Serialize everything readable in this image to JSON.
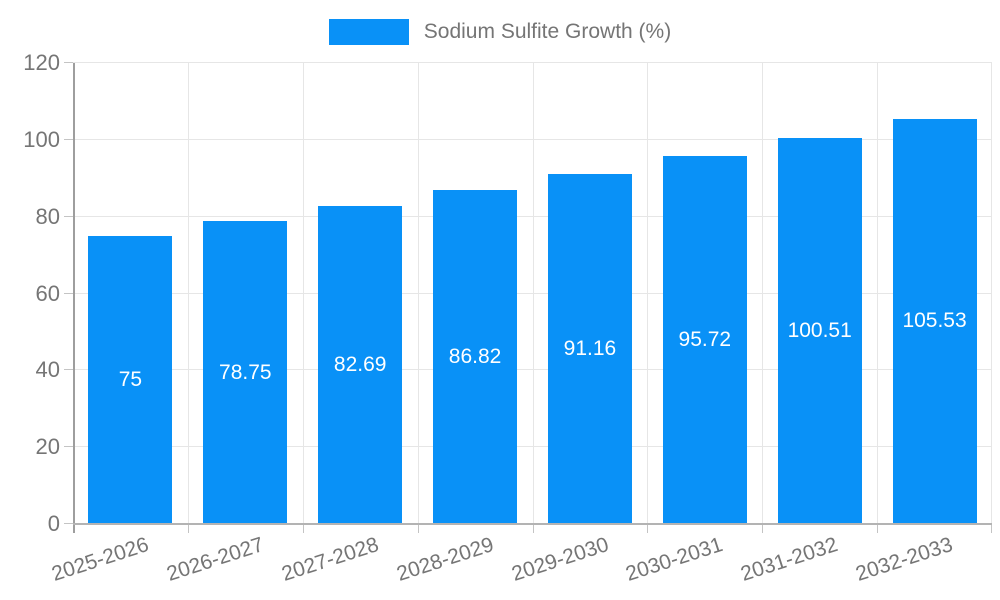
{
  "legend": {
    "label": "Sodium Sulfite Growth (%)"
  },
  "chart_data": {
    "type": "bar",
    "title": "",
    "categories": [
      "2025-2026",
      "2026-2027",
      "2027-2028",
      "2028-2029",
      "2029-2030",
      "2030-2031",
      "2031-2032",
      "2032-2033"
    ],
    "series": [
      {
        "name": "Sodium Sulfite Growth (%)",
        "values": [
          75,
          78.75,
          82.69,
          86.82,
          91.16,
          95.72,
          100.51,
          105.53
        ],
        "value_labels": [
          "75",
          "78.75",
          "82.69",
          "86.82",
          "91.16",
          "95.72",
          "100.51",
          "105.53"
        ],
        "color": "#0991f7"
      }
    ],
    "xlabel": "",
    "ylabel": "",
    "ylim": [
      0,
      120
    ],
    "yticks": [
      0,
      20,
      40,
      60,
      80,
      100,
      120
    ],
    "grid": true,
    "legend_position": "top",
    "x_label_rotation_deg": -18,
    "colors": {
      "bar": "#0991f7",
      "bar_value_text": "#ffffff",
      "axis_text": "#757575",
      "gridline": "#e6e6e6",
      "axis_line_y": "#9e9e9e",
      "axis_line_x": "#b3b3b3",
      "tick": "#c4c4c4",
      "background": "#ffffff"
    }
  }
}
